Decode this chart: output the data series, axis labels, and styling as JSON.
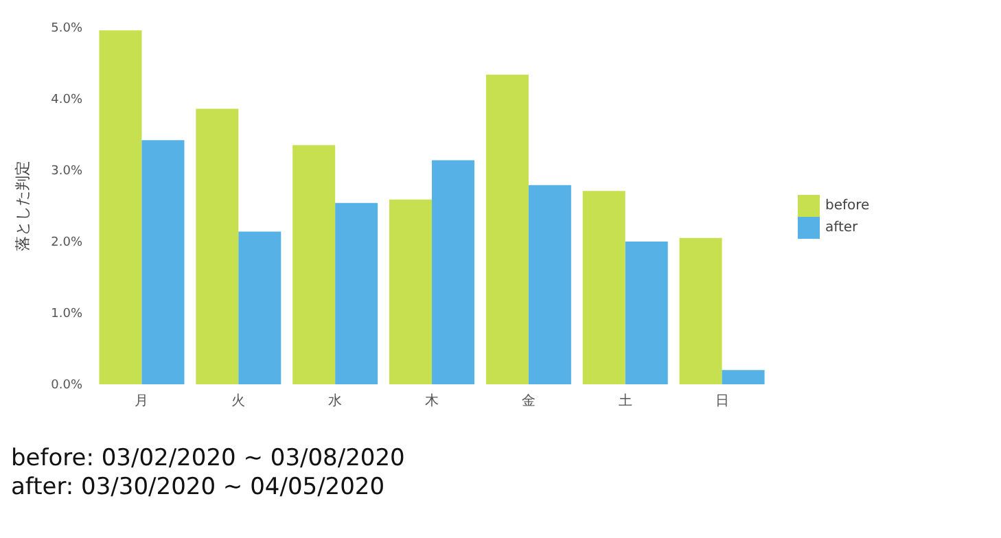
{
  "chart_data": {
    "type": "bar",
    "ylabel": "落とした判定",
    "categories": [
      "月",
      "火",
      "水",
      "木",
      "金",
      "土",
      "日"
    ],
    "series": [
      {
        "name": "before",
        "color": "#c7e04f",
        "values": [
          4.96,
          3.86,
          3.35,
          2.59,
          4.34,
          2.71,
          2.05
        ]
      },
      {
        "name": "after",
        "color": "#56b1e6",
        "values": [
          3.42,
          2.14,
          2.54,
          3.14,
          2.79,
          2.0,
          0.2
        ]
      }
    ],
    "ylim": [
      0,
      5
    ],
    "yticks": [
      {
        "value": 0,
        "label": "0.0%"
      },
      {
        "value": 1,
        "label": "1.0%"
      },
      {
        "value": 2,
        "label": "2.0%"
      },
      {
        "value": 3,
        "label": "3.0%"
      },
      {
        "value": 4,
        "label": "4.0%"
      },
      {
        "value": 5,
        "label": "5.0%"
      }
    ],
    "grid": false,
    "legend": "right",
    "annotations": [
      "before: 03/02/2020 ~ 03/08/2020",
      "after: 03/30/2020 ~ 04/05/2020"
    ]
  }
}
